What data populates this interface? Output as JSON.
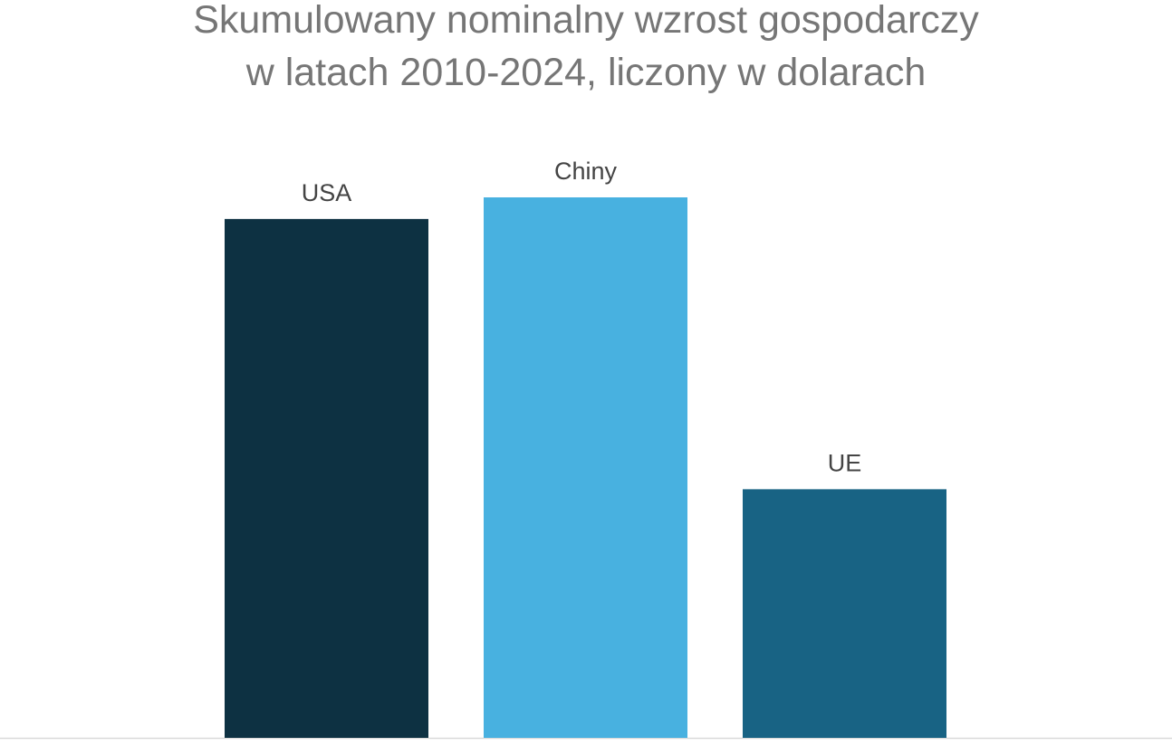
{
  "chart_data": {
    "type": "bar",
    "title": [
      "Skumulowany nominalny wzrost gospodarczy",
      "w latach 2010-2024, liczony w dolarach"
    ],
    "categories": [
      "USA",
      "Chiny",
      "UE"
    ],
    "values": [
      96,
      100,
      46
    ],
    "colors": [
      "#0d3142",
      "#48b1e0",
      "#186384"
    ]
  }
}
